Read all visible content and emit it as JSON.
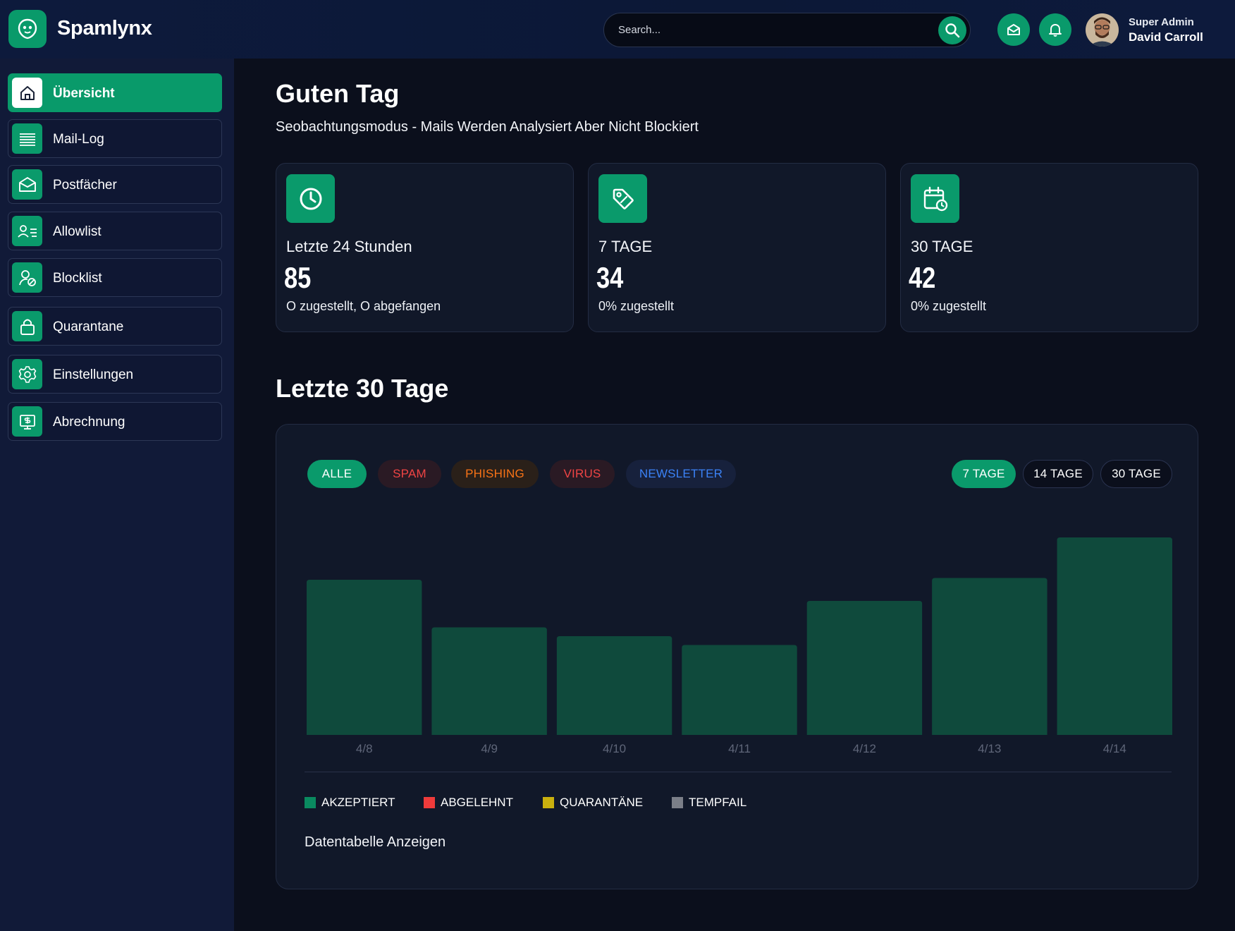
{
  "app": {
    "brand": "Spamlynx"
  },
  "search": {
    "placeholder": "Search..."
  },
  "user": {
    "role": "Super Admin",
    "name": "David Carroll"
  },
  "sidebar": {
    "items": [
      {
        "label": "Übersicht",
        "icon": "home-icon",
        "active": true
      },
      {
        "label": "Mail-Log",
        "icon": "list-icon"
      },
      {
        "label": "Postfächer",
        "icon": "mailbox-icon"
      },
      {
        "label": "Allowlist",
        "icon": "user-list-icon"
      },
      {
        "label": "Blocklist",
        "icon": "user-block-icon"
      },
      {
        "label": "Quarantane",
        "icon": "lock-icon"
      },
      {
        "label": "Einstellungen",
        "icon": "gear-icon"
      },
      {
        "label": "Abrechnung",
        "icon": "billing-icon"
      }
    ]
  },
  "main": {
    "greeting": "Guten Tag",
    "subtitle": "Seobachtungsmodus - Mails Werden Analysiert Aber Nicht Blockiert",
    "section_title": "Letzte 30 Tage",
    "table_link": "Datentabelle Anzeigen"
  },
  "stats": [
    {
      "label": "Letzte 24 Stunden",
      "value": "85",
      "detail": "O zugestellt, O abgefangen",
      "icon": "clock-icon"
    },
    {
      "label": "7 TAGE",
      "value": "34",
      "detail": "0% zugestellt",
      "icon": "tag-icon"
    },
    {
      "label": "30 TAGE",
      "value": "42",
      "detail": "0% zugestellt",
      "icon": "calendar-icon"
    }
  ],
  "filters": {
    "categories": [
      {
        "label": "ALLE",
        "active": true,
        "color": "#0a9a6b"
      },
      {
        "label": "SPAM",
        "color": "#ef4444"
      },
      {
        "label": "PHISHING",
        "color": "#f97316"
      },
      {
        "label": "VIRUS",
        "color": "#ef4444"
      },
      {
        "label": "NEWSLETTER",
        "color": "#3b82f6"
      }
    ],
    "ranges": [
      {
        "label": "7 TAGE",
        "active": true
      },
      {
        "label": "14 TAGE"
      },
      {
        "label": "30 TAGE"
      }
    ]
  },
  "legend": [
    {
      "label": "AKZEPTIERT",
      "color": "#0a8a60"
    },
    {
      "label": "ABGELEHNT",
      "color": "#ef3b3b"
    },
    {
      "label": "QUARANTÄNE",
      "color": "#c9b00e"
    },
    {
      "label": "TEMPFAIL",
      "color": "#7b7f88"
    }
  ],
  "chart_data": {
    "type": "bar",
    "categories": [
      "4/8",
      "4/9",
      "4/10",
      "4/11",
      "4/12",
      "4/13",
      "4/14"
    ],
    "series": [
      {
        "name": "AKZEPTIERT",
        "values": [
          44,
          30.5,
          28,
          25.5,
          38,
          44.5,
          56
        ]
      }
    ],
    "ylim": [
      0,
      60
    ],
    "bar_color": "#0f4a3c",
    "grid": false,
    "legend": "bottom-left"
  }
}
